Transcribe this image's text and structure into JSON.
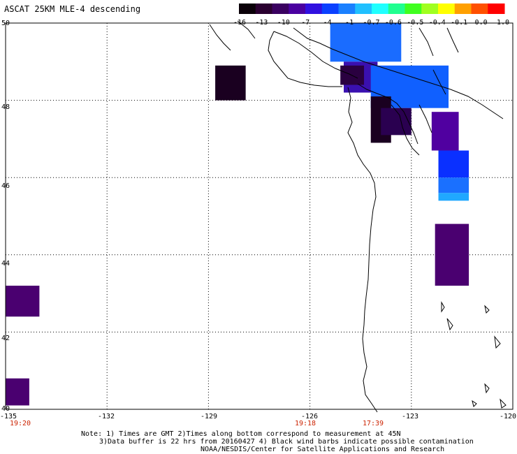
{
  "title": "ASCAT 25KM MLE-4 descending",
  "colorbar": {
    "colors": [
      "#0a0008",
      "#2a0030",
      "#3a0060",
      "#4a00a0",
      "#3010e0",
      "#0a40ff",
      "#1a80ff",
      "#20c0ff",
      "#20ffff",
      "#20ff90",
      "#40ff20",
      "#a0ff20",
      "#ffff00",
      "#ffa000",
      "#ff5000",
      "#ff0000"
    ],
    "labels": [
      "-16",
      "-13",
      "-10",
      "-7",
      "-4",
      "-1",
      "-0.7",
      "-0.6",
      "-0.5",
      "-0.4",
      "-0.1",
      "0.0",
      "1.0"
    ]
  },
  "axes": {
    "lon_ticks": [
      "-135",
      "-132",
      "-129",
      "-126",
      "-123",
      "-120"
    ],
    "lat_ticks": [
      "50",
      "48",
      "46",
      "44",
      "42",
      "40"
    ]
  },
  "time_labels": [
    "19:20",
    "19:18",
    "17:39"
  ],
  "notes": [
    "Note: 1) Times are GMT 2)Times along bottom correspond to measurement at 45N",
    "3)Data buffer is 22 hrs from 20160427 4) Black wind barbs indicate possible contamination",
    "NOAA/NESDIS/Center for Satellite Applications and Research"
  ],
  "data_cells": [
    {
      "lon1": -125.4,
      "lon2": -123.3,
      "lat1": 49.0,
      "lat2": 50.0,
      "color": "#1a6cff"
    },
    {
      "lon1": -125.0,
      "lon2": -124.0,
      "lat1": 48.2,
      "lat2": 49.0,
      "color": "#3a10b0"
    },
    {
      "lon1": -124.2,
      "lon2": -121.9,
      "lat1": 47.8,
      "lat2": 48.9,
      "color": "#1060ff"
    },
    {
      "lon1": -125.1,
      "lon2": -124.4,
      "lat1": 48.4,
      "lat2": 48.9,
      "color": "#2a0040"
    },
    {
      "lon1": -128.8,
      "lon2": -127.9,
      "lat1": 48.0,
      "lat2": 48.9,
      "color": "#1a0020"
    },
    {
      "lon1": -124.2,
      "lon2": -123.6,
      "lat1": 46.9,
      "lat2": 48.1,
      "color": "#1a0020"
    },
    {
      "lon1": -123.9,
      "lon2": -123.0,
      "lat1": 47.1,
      "lat2": 47.8,
      "color": "#2a0050"
    },
    {
      "lon1": -122.4,
      "lon2": -121.6,
      "lat1": 46.7,
      "lat2": 47.7,
      "color": "#5000a0"
    },
    {
      "lon1": -122.2,
      "lon2": -121.3,
      "lat1": 46.0,
      "lat2": 46.7,
      "color": "#0a30ff"
    },
    {
      "lon1": -122.2,
      "lon2": -121.3,
      "lat1": 45.6,
      "lat2": 46.0,
      "color": "#1a70ff"
    },
    {
      "lon1": -122.2,
      "lon2": -121.3,
      "lat1": 45.4,
      "lat2": 45.6,
      "color": "#20a8ff"
    },
    {
      "lon1": -122.3,
      "lon2": -121.3,
      "lat1": 43.2,
      "lat2": 44.8,
      "color": "#4a0070"
    },
    {
      "lon1": -135.0,
      "lon2": -134.0,
      "lat1": 42.4,
      "lat2": 43.2,
      "color": "#4a0070"
    },
    {
      "lon1": -135.0,
      "lon2": -134.3,
      "lat1": 40.1,
      "lat2": 40.8,
      "color": "#4a0070"
    }
  ]
}
